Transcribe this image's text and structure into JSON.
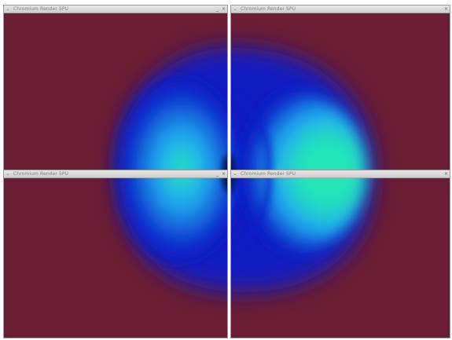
{
  "windows": [
    {
      "title": "Chromium Render SPU",
      "menu_icon": "chevron-down-icon",
      "buttons": [
        "minimize-icon",
        "close-icon"
      ]
    },
    {
      "title": "Chromium Render SPU",
      "menu_icon": "chevron-down-icon",
      "buttons": [
        "close-icon"
      ]
    },
    {
      "title": "Chromium Render SPU",
      "menu_icon": "chevron-down-icon",
      "buttons": [
        "minimize-icon",
        "close-icon"
      ]
    },
    {
      "title": "Chromium Render SPU",
      "menu_icon": "chevron-down-icon",
      "buttons": [
        "close-icon"
      ]
    }
  ],
  "glyphs": {
    "menu": "⌄",
    "minimize": "_",
    "close": "×"
  },
  "colors": {
    "background": "#6b1d33",
    "field_outer": "#0a1ec8",
    "field_mid": "#1fa8f0",
    "field_core": "#23e6b8"
  }
}
